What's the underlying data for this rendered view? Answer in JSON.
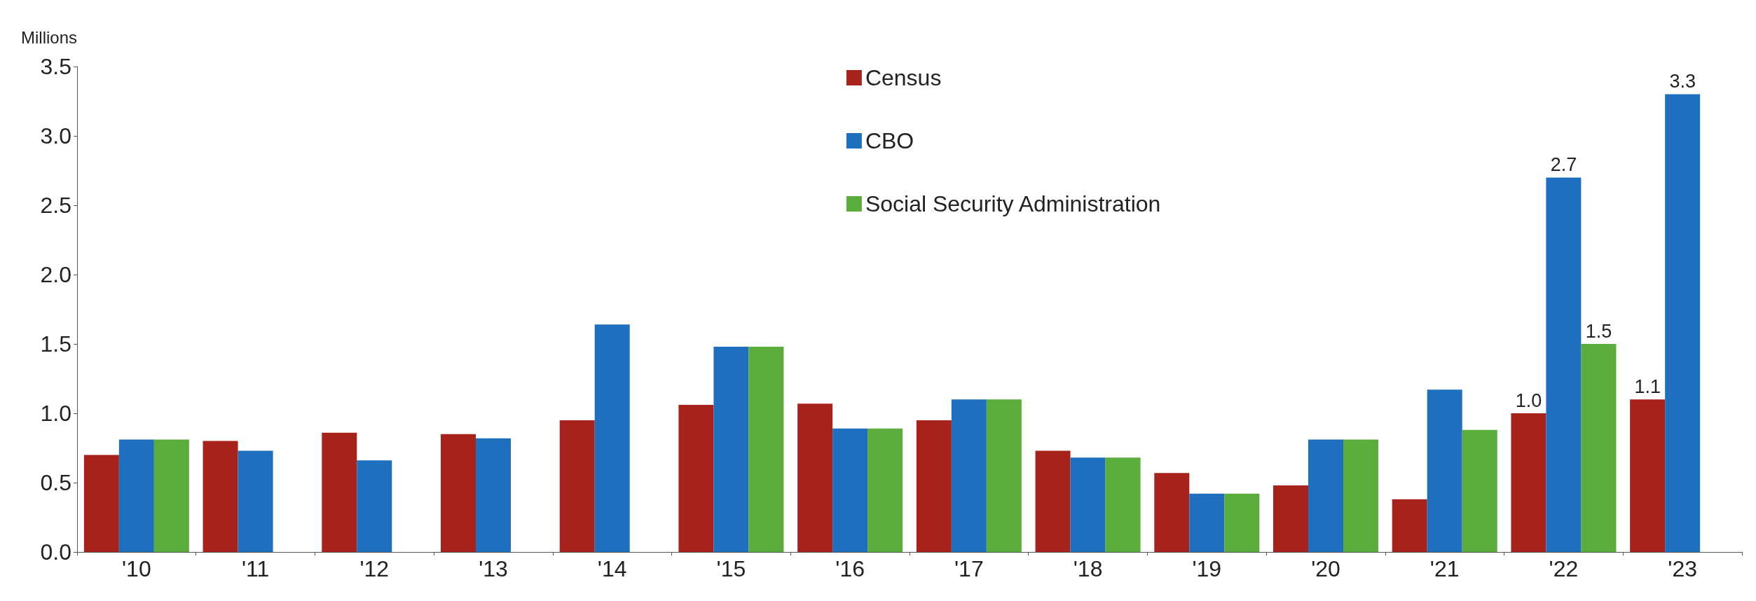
{
  "chart_data": {
    "type": "bar",
    "ylabel": "Millions",
    "categories": [
      "'10",
      "'11",
      "'12",
      "'13",
      "'14",
      "'15",
      "'16",
      "'17",
      "'18",
      "'19",
      "'20",
      "'21",
      "'22",
      "'23"
    ],
    "series": [
      {
        "name": "Census",
        "color": "#a8221c",
        "values": [
          0.7,
          0.8,
          0.86,
          0.85,
          0.95,
          1.06,
          1.07,
          0.95,
          0.73,
          0.57,
          0.48,
          0.38,
          1.0,
          1.1
        ],
        "value_labels": [
          null,
          null,
          null,
          null,
          null,
          null,
          null,
          null,
          null,
          null,
          null,
          null,
          "1.0",
          "1.1"
        ]
      },
      {
        "name": "CBO",
        "color": "#1f6fbf",
        "values": [
          0.81,
          0.73,
          0.66,
          0.82,
          1.64,
          1.48,
          0.89,
          1.1,
          0.68,
          0.42,
          0.81,
          1.17,
          2.7,
          3.3
        ],
        "value_labels": [
          null,
          null,
          null,
          null,
          null,
          null,
          null,
          null,
          null,
          null,
          null,
          null,
          "2.7",
          "3.3"
        ]
      },
      {
        "name": "Social Security Administration",
        "color": "#5aac3c",
        "values": [
          0.81,
          null,
          null,
          null,
          null,
          1.48,
          0.89,
          1.1,
          0.68,
          0.42,
          0.81,
          0.88,
          1.5,
          null
        ],
        "value_labels": [
          null,
          null,
          null,
          null,
          null,
          null,
          null,
          null,
          null,
          null,
          null,
          null,
          "1.5",
          null
        ]
      }
    ],
    "ylim": [
      0,
      3.5
    ],
    "yticks": [
      "0.0",
      "0.5",
      "1.0",
      "1.5",
      "2.0",
      "2.5",
      "3.0",
      "3.5"
    ],
    "grid": false,
    "legend": "top"
  }
}
